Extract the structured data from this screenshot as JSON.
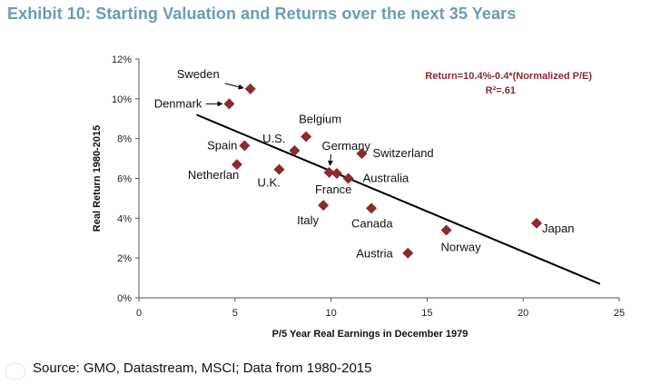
{
  "title": "Exhibit 10: Starting Valuation and Returns over the next 35 Years",
  "source": "Source: GMO, Datastream, MSCI; Data from 1980-2015",
  "chart_data": {
    "type": "scatter",
    "xlabel": "P/5 Year Real Earnings in December 1979",
    "ylabel": "Real Return 1980-2015",
    "xlim": [
      0,
      25
    ],
    "ylim": [
      0,
      12
    ],
    "x_ticks": [
      "0",
      "5",
      "10",
      "15",
      "20",
      "25"
    ],
    "y_ticks": [
      "0%",
      "2%",
      "4%",
      "6%",
      "8%",
      "10%",
      "12%"
    ],
    "equation": "Return=10.4%-0.4*(Normalized P/E)",
    "r_squared": "R²=.61",
    "trendline": {
      "x": [
        3,
        24
      ],
      "y": [
        9.2,
        0.7
      ]
    },
    "marker_color": "#8b2a2f",
    "points": [
      {
        "label": "Sweden",
        "x": 5.8,
        "y": 10.5
      },
      {
        "label": "Denmark",
        "x": 4.7,
        "y": 9.75
      },
      {
        "label": "Belgium",
        "x": 8.7,
        "y": 8.1
      },
      {
        "label": "Spain",
        "x": 5.5,
        "y": 7.65
      },
      {
        "label": "U.S.",
        "x": 8.1,
        "y": 7.4
      },
      {
        "label": "Switzerland",
        "x": 11.6,
        "y": 7.25
      },
      {
        "label": "Netherlan",
        "x": 5.1,
        "y": 6.7
      },
      {
        "label": "U.K.",
        "x": 7.3,
        "y": 6.45
      },
      {
        "label": "Germany",
        "x": 9.9,
        "y": 6.3
      },
      {
        "label": "France",
        "x": 10.3,
        "y": 6.25
      },
      {
        "label": "Australia",
        "x": 10.9,
        "y": 6.0
      },
      {
        "label": "Italy",
        "x": 9.6,
        "y": 4.65
      },
      {
        "label": "Canada",
        "x": 12.1,
        "y": 4.5
      },
      {
        "label": "Norway",
        "x": 16.0,
        "y": 3.4
      },
      {
        "label": "Japan",
        "x": 20.7,
        "y": 3.75
      },
      {
        "label": "Austria",
        "x": 14.0,
        "y": 2.25
      }
    ]
  }
}
